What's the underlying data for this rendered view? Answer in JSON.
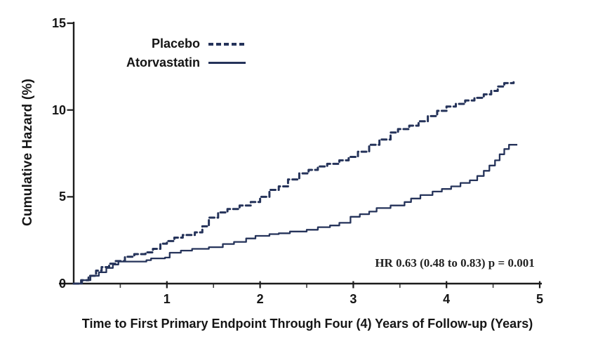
{
  "chart_data": {
    "type": "line",
    "subtype": "step-after",
    "title": "",
    "xlabel": "Time to First Primary Endpoint Through Four (4) Years of Follow-up (Years)",
    "ylabel": "Cumulative Hazard (%)",
    "xlim": [
      0,
      5
    ],
    "ylim": [
      0,
      15
    ],
    "y_ticks": [
      0,
      5,
      10,
      15
    ],
    "x_major_ticks": [
      1,
      2,
      3,
      4,
      5
    ],
    "x_minor_ticks": [
      0.5,
      1.5,
      2.5,
      3.5,
      4.5
    ],
    "grid": false,
    "legend_position": "top-left-inside",
    "annotation": "HR 0.63 (0.48 to 0.83) p = 0.001",
    "axis_color": "#1c1c1c",
    "text_color": "#151515",
    "background_color": "#ffffff",
    "series": [
      {
        "name": "Placebo",
        "line_style": "dashed",
        "color": "#25335a",
        "points": [
          [
            0,
            0
          ],
          [
            0.08,
            0.2
          ],
          [
            0.16,
            0.45
          ],
          [
            0.24,
            0.75
          ],
          [
            0.3,
            0.95
          ],
          [
            0.38,
            1.15
          ],
          [
            0.45,
            1.3
          ],
          [
            0.55,
            1.55
          ],
          [
            0.65,
            1.7
          ],
          [
            0.77,
            1.8
          ],
          [
            0.85,
            2.0
          ],
          [
            0.93,
            2.3
          ],
          [
            1.0,
            2.45
          ],
          [
            1.08,
            2.65
          ],
          [
            1.17,
            2.8
          ],
          [
            1.3,
            2.95
          ],
          [
            1.38,
            3.3
          ],
          [
            1.45,
            3.8
          ],
          [
            1.55,
            4.1
          ],
          [
            1.65,
            4.3
          ],
          [
            1.78,
            4.5
          ],
          [
            1.9,
            4.7
          ],
          [
            2.0,
            5.0
          ],
          [
            2.1,
            5.4
          ],
          [
            2.2,
            5.6
          ],
          [
            2.3,
            6.0
          ],
          [
            2.42,
            6.35
          ],
          [
            2.52,
            6.55
          ],
          [
            2.62,
            6.75
          ],
          [
            2.72,
            6.9
          ],
          [
            2.85,
            7.1
          ],
          [
            2.95,
            7.3
          ],
          [
            3.05,
            7.6
          ],
          [
            3.17,
            8.0
          ],
          [
            3.28,
            8.3
          ],
          [
            3.4,
            8.7
          ],
          [
            3.48,
            8.9
          ],
          [
            3.6,
            9.1
          ],
          [
            3.7,
            9.35
          ],
          [
            3.8,
            9.65
          ],
          [
            3.9,
            9.95
          ],
          [
            4.0,
            10.2
          ],
          [
            4.1,
            10.35
          ],
          [
            4.2,
            10.55
          ],
          [
            4.3,
            10.7
          ],
          [
            4.4,
            10.9
          ],
          [
            4.48,
            11.1
          ],
          [
            4.55,
            11.35
          ],
          [
            4.62,
            11.55
          ],
          [
            4.72,
            11.6
          ]
        ]
      },
      {
        "name": "Atorvastatin",
        "line_style": "solid",
        "color": "#25335a",
        "points": [
          [
            0,
            0
          ],
          [
            0.09,
            0.2
          ],
          [
            0.18,
            0.45
          ],
          [
            0.27,
            0.65
          ],
          [
            0.35,
            0.9
          ],
          [
            0.42,
            1.1
          ],
          [
            0.48,
            1.27
          ],
          [
            0.78,
            1.35
          ],
          [
            0.83,
            1.45
          ],
          [
            0.98,
            1.5
          ],
          [
            1.03,
            1.78
          ],
          [
            1.15,
            1.9
          ],
          [
            1.27,
            2.0
          ],
          [
            1.45,
            2.1
          ],
          [
            1.6,
            2.28
          ],
          [
            1.72,
            2.4
          ],
          [
            1.85,
            2.6
          ],
          [
            1.95,
            2.75
          ],
          [
            2.1,
            2.85
          ],
          [
            2.2,
            2.9
          ],
          [
            2.32,
            3.0
          ],
          [
            2.5,
            3.1
          ],
          [
            2.62,
            3.25
          ],
          [
            2.75,
            3.35
          ],
          [
            2.85,
            3.5
          ],
          [
            2.97,
            3.85
          ],
          [
            3.07,
            4.0
          ],
          [
            3.17,
            4.15
          ],
          [
            3.25,
            4.35
          ],
          [
            3.4,
            4.5
          ],
          [
            3.55,
            4.7
          ],
          [
            3.62,
            4.9
          ],
          [
            3.72,
            5.1
          ],
          [
            3.85,
            5.3
          ],
          [
            3.95,
            5.45
          ],
          [
            4.05,
            5.6
          ],
          [
            4.15,
            5.8
          ],
          [
            4.25,
            5.95
          ],
          [
            4.33,
            6.2
          ],
          [
            4.4,
            6.5
          ],
          [
            4.46,
            6.8
          ],
          [
            4.52,
            7.1
          ],
          [
            4.57,
            7.45
          ],
          [
            4.62,
            7.75
          ],
          [
            4.67,
            8.0
          ],
          [
            4.76,
            8.0
          ]
        ]
      }
    ]
  }
}
